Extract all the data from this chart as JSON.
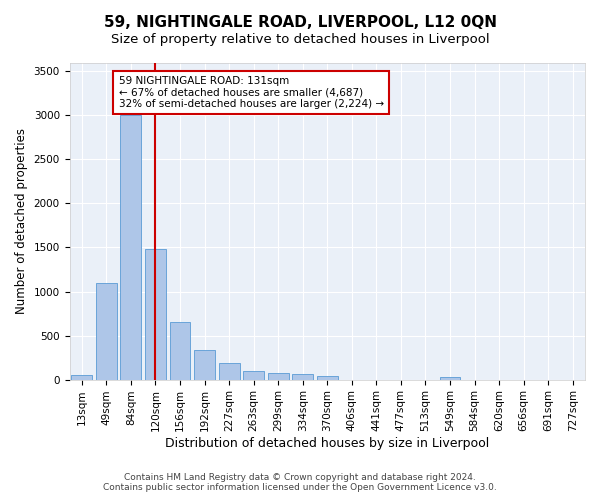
{
  "title": "59, NIGHTINGALE ROAD, LIVERPOOL, L12 0QN",
  "subtitle": "Size of property relative to detached houses in Liverpool",
  "xlabel": "Distribution of detached houses by size in Liverpool",
  "ylabel": "Number of detached properties",
  "categories": [
    "13sqm",
    "49sqm",
    "84sqm",
    "120sqm",
    "156sqm",
    "192sqm",
    "227sqm",
    "263sqm",
    "299sqm",
    "334sqm",
    "370sqm",
    "406sqm",
    "441sqm",
    "477sqm",
    "513sqm",
    "549sqm",
    "584sqm",
    "620sqm",
    "656sqm",
    "691sqm",
    "727sqm"
  ],
  "values": [
    50,
    1100,
    3000,
    1480,
    650,
    340,
    190,
    100,
    80,
    60,
    40,
    0,
    0,
    0,
    0,
    30,
    0,
    0,
    0,
    0,
    0
  ],
  "bar_color": "#aec6e8",
  "bar_edge_color": "#5a9bd5",
  "vline_color": "#cc0000",
  "vline_pos": 3.5,
  "annotation_text": "59 NIGHTINGALE ROAD: 131sqm\n← 67% of detached houses are smaller (4,687)\n32% of semi-detached houses are larger (2,224) →",
  "annotation_box_edge_color": "#cc0000",
  "ylim": [
    0,
    3600
  ],
  "yticks": [
    0,
    500,
    1000,
    1500,
    2000,
    2500,
    3000,
    3500
  ],
  "background_color": "#eaf0f8",
  "footer": "Contains HM Land Registry data © Crown copyright and database right 2024.\nContains public sector information licensed under the Open Government Licence v3.0.",
  "title_fontsize": 11,
  "subtitle_fontsize": 9.5,
  "tick_fontsize": 7.5,
  "ylabel_fontsize": 8.5,
  "xlabel_fontsize": 9,
  "annotation_fontsize": 7.5,
  "footer_fontsize": 6.5
}
